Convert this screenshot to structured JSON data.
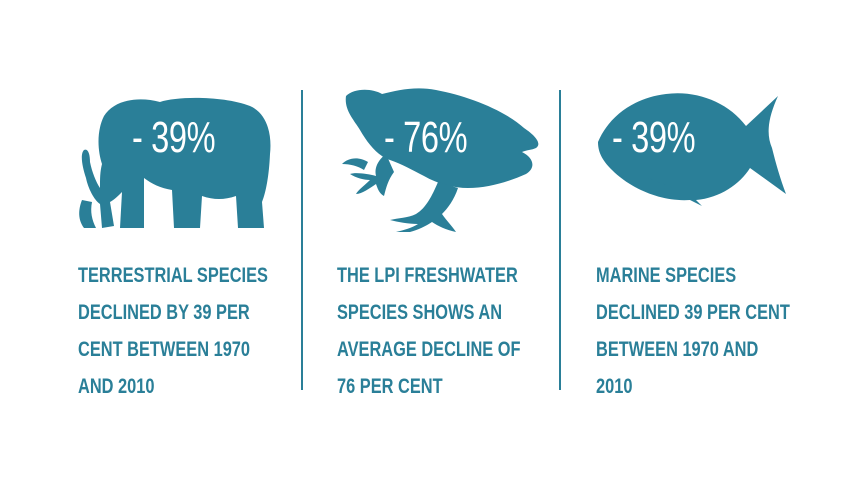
{
  "colors": {
    "primary": "#2a7f98",
    "text_on_icon": "#ffffff"
  },
  "panels": [
    {
      "icon": "elephant-icon",
      "stat": "- 39%",
      "caption": [
        "TERRESTRIAL SPECIES",
        "DECLINED BY 39 PER",
        "CENT BETWEEN 1970",
        "AND 2010"
      ]
    },
    {
      "icon": "frog-icon",
      "stat": "- 76%",
      "caption": [
        "THE LPI FRESHWATER",
        "SPECIES SHOWS AN",
        "AVERAGE DECLINE OF",
        "76 PER CENT"
      ]
    },
    {
      "icon": "fish-icon",
      "stat": "- 39%",
      "caption": [
        "MARINE SPECIES",
        "DECLINED 39 PER CENT",
        "BETWEEN 1970 AND",
        "2010"
      ]
    }
  ]
}
